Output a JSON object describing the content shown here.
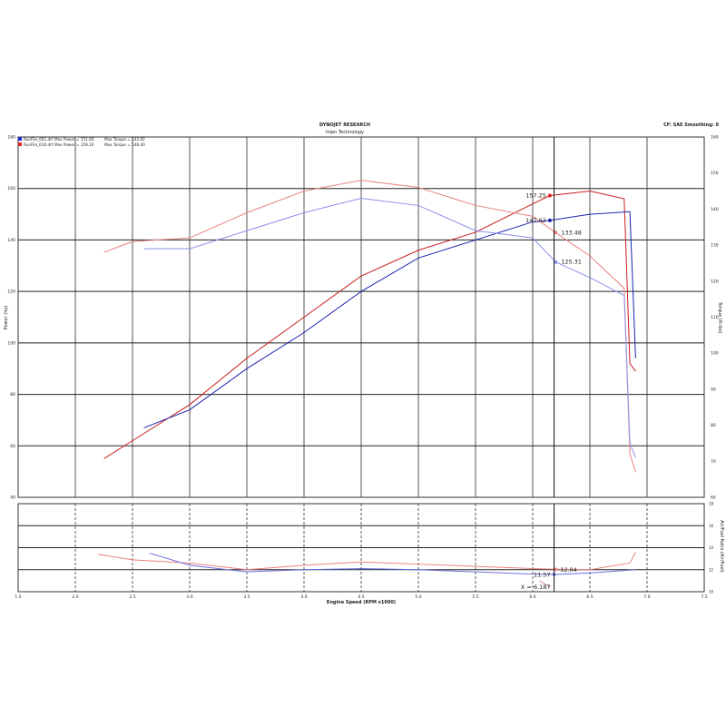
{
  "chart_data": [
    {
      "type": "line",
      "title": "DYNOJET RESEARCH",
      "subtitle": "Injen Technology",
      "note": "CF: SAE Smoothing: 0",
      "xlabel": "Engine Speed (RPM x1000)",
      "ylabel": "Power (hp)",
      "y2label": "Torque (ft-lbs)",
      "xlim": [
        1.5,
        7.5
      ],
      "ylim": [
        40,
        180
      ],
      "y2lim": [
        60,
        160
      ],
      "xticks": [
        "1.5",
        "2.0",
        "2.5",
        "3.0",
        "3.5",
        "4.0",
        "4.5",
        "5.0",
        "5.5",
        "6.0",
        "6.5",
        "7.0",
        "7.5"
      ],
      "yticks": [
        "40",
        "60",
        "80",
        "100",
        "120",
        "140",
        "160",
        "180"
      ],
      "y2ticks": [
        "60",
        "70",
        "80",
        "90",
        "100",
        "110",
        "120",
        "130",
        "140",
        "150",
        "160"
      ],
      "grid": true,
      "legend": [
        {
          "file": "RunFile_001.drf",
          "text": "Max Power = 151.60",
          "torque": "Max Torque = 142.82",
          "color": "#1f2fd0"
        },
        {
          "file": "RunFile_010.drf",
          "text": "Max Power = 159.10",
          "torque": "Max Torque = 148.40",
          "color": "#e02020"
        }
      ],
      "legend_placement": "top-left",
      "series": [
        {
          "axis": "power",
          "color": "#c81e1e",
          "x": [
            2.25,
            2.5,
            3.0,
            3.5,
            4.0,
            4.5,
            5.0,
            5.5,
            6.0,
            6.15,
            6.5,
            6.8,
            6.85,
            6.9
          ],
          "y": [
            55,
            62,
            76,
            94,
            110,
            126,
            136,
            143,
            154,
            157.25,
            159,
            156,
            92,
            89
          ]
        },
        {
          "axis": "power",
          "color": "#1a22b0",
          "x": [
            2.6,
            3.0,
            3.5,
            4.0,
            4.5,
            5.0,
            5.5,
            6.0,
            6.15,
            6.5,
            6.85,
            6.9
          ],
          "y": [
            67,
            74,
            90,
            104,
            120,
            133,
            140,
            147,
            147.62,
            150,
            151,
            94
          ]
        },
        {
          "axis": "torque",
          "color": "#e88080",
          "x": [
            2.25,
            2.5,
            3.0,
            3.5,
            4.0,
            4.5,
            5.0,
            5.5,
            6.0,
            6.2,
            6.5,
            6.8,
            6.85,
            6.9
          ],
          "y": [
            128,
            131,
            132,
            139,
            145,
            148,
            146,
            141,
            138,
            133.48,
            127,
            118,
            72,
            67
          ]
        },
        {
          "axis": "torque",
          "color": "#8a90e8",
          "x": [
            2.6,
            3.0,
            3.5,
            4.0,
            4.5,
            5.0,
            5.5,
            6.0,
            6.2,
            6.5,
            6.8,
            6.85,
            6.9
          ],
          "y": [
            129,
            129,
            134,
            139,
            143,
            141,
            134,
            132,
            125.31,
            121,
            116,
            75,
            71
          ]
        }
      ],
      "annotations": [
        {
          "text": "157.25",
          "x": 6.15,
          "y": 157.25,
          "axis": "power",
          "color": "#e02020"
        },
        {
          "text": "147.62",
          "x": 6.15,
          "y": 147.62,
          "axis": "power",
          "color": "#1a22b0"
        },
        {
          "text": "133.48",
          "x": 6.2,
          "y": 133.48,
          "axis": "torque",
          "color": "#e88080"
        },
        {
          "text": "125.31",
          "x": 6.2,
          "y": 125.31,
          "axis": "torque",
          "color": "#8a90e8"
        }
      ]
    },
    {
      "type": "line",
      "ylabel": "Air/Fuel Ratio (Air/Fuel)",
      "xlim": [
        1.5,
        7.5
      ],
      "ylim": [
        10,
        18
      ],
      "yticks": [
        "10",
        "12",
        "14",
        "16",
        "18"
      ],
      "cursor": "X = 6.187",
      "cursor_x": 6.187,
      "series": [
        {
          "color": "#e88080",
          "x": [
            2.2,
            2.5,
            3.0,
            3.5,
            4.0,
            4.5,
            5.0,
            5.5,
            6.0,
            6.2,
            6.5,
            6.85,
            6.9
          ],
          "y": [
            13.4,
            12.9,
            12.6,
            12.0,
            12.4,
            12.7,
            12.5,
            12.3,
            12.1,
            12.04,
            12.0,
            12.6,
            13.6
          ]
        },
        {
          "color": "#6a70e0",
          "x": [
            2.65,
            3.0,
            3.5,
            4.0,
            4.5,
            5.0,
            5.5,
            6.0,
            6.2,
            6.5,
            6.9
          ],
          "y": [
            13.5,
            12.4,
            11.8,
            12.0,
            12.1,
            12.0,
            11.8,
            11.6,
            11.57,
            11.7,
            12.0
          ]
        }
      ],
      "annotations": [
        {
          "text": "12.04",
          "x": 6.2,
          "y": 12.04,
          "color": "#e88080"
        },
        {
          "text": "11.57",
          "x": 6.187,
          "y": 11.57,
          "color": "#6a70e0"
        }
      ]
    }
  ]
}
